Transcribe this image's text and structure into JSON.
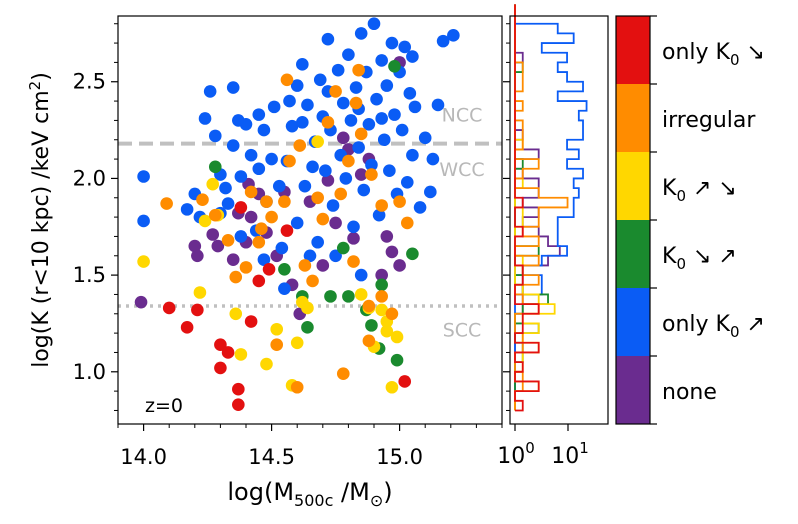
{
  "chart_data": [
    {
      "type": "scatter",
      "xlabel_parts": [
        "log(M",
        "500c",
        " /M",
        "⊙",
        ")"
      ],
      "ylabel_parts": [
        "log(K (r<10 kpc) /keV cm",
        "2",
        ")"
      ],
      "xlim": [
        13.9,
        15.4
      ],
      "ylim": [
        0.73,
        2.84
      ],
      "x_ticks": [
        {
          "v": 14.0,
          "label": "14.0"
        },
        {
          "v": 14.5,
          "label": "14.5"
        },
        {
          "v": 15.0,
          "label": "15.0"
        }
      ],
      "y_ticks": [
        {
          "v": 1.0,
          "label": "1.0"
        },
        {
          "v": 1.5,
          "label": "1.5"
        },
        {
          "v": 2.0,
          "label": "2.0"
        },
        {
          "v": 2.5,
          "label": "2.5"
        }
      ],
      "annotation": "z=0",
      "thresholds": [
        {
          "y": 2.18,
          "style": "dashed",
          "label": "NCC",
          "label_y": 2.33
        },
        {
          "y": 2.18,
          "style": "none",
          "label": "WCC",
          "label_y": 2.05
        },
        {
          "y": 1.34,
          "style": "dotted",
          "label": "SCC",
          "label_y": 1.22
        }
      ],
      "series": [
        {
          "name": "none",
          "color": "#6a2c8f",
          "points": [
            [
              13.99,
              1.36
            ],
            [
              14.2,
              1.65
            ],
            [
              14.21,
              1.6
            ],
            [
              14.27,
              1.71
            ],
            [
              14.29,
              1.65
            ],
            [
              14.35,
              1.58
            ],
            [
              14.37,
              1.82
            ],
            [
              14.4,
              1.67
            ],
            [
              14.42,
              1.8
            ],
            [
              14.41,
              1.97
            ],
            [
              14.45,
              1.92
            ],
            [
              14.48,
              1.72
            ],
            [
              14.52,
              1.6
            ],
            [
              14.58,
              1.45
            ],
            [
              14.61,
              1.3
            ],
            [
              14.7,
              1.55
            ],
            [
              14.72,
              1.99
            ],
            [
              14.75,
              1.77
            ],
            [
              14.8,
              2.15
            ],
            [
              14.82,
              1.69
            ],
            [
              14.85,
              2.02
            ],
            [
              14.88,
              2.1
            ],
            [
              14.78,
              2.21
            ],
            [
              14.93,
              1.5
            ],
            [
              14.97,
              1.62
            ],
            [
              15.0,
              1.55
            ],
            [
              15.0,
              2.6
            ],
            [
              14.95,
              1.7
            ],
            [
              14.65,
              1.88
            ],
            [
              14.55,
              1.93
            ]
          ]
        },
        {
          "name": "only K0 ↗",
          "color": "#0a5cf5",
          "points": [
            [
              14.0,
              2.01
            ],
            [
              14.0,
              1.78
            ],
            [
              14.17,
              1.84
            ],
            [
              14.2,
              1.92
            ],
            [
              14.22,
              1.8
            ],
            [
              14.24,
              2.31
            ],
            [
              14.26,
              2.45
            ],
            [
              14.28,
              2.22
            ],
            [
              14.3,
              2.02
            ],
            [
              14.32,
              1.95
            ],
            [
              14.33,
              1.87
            ],
            [
              14.35,
              2.17
            ],
            [
              14.37,
              2.3
            ],
            [
              14.38,
              2.01
            ],
            [
              14.4,
              2.28
            ],
            [
              14.42,
              2.12
            ],
            [
              14.44,
              1.73
            ],
            [
              14.45,
              2.33
            ],
            [
              14.47,
              2.25
            ],
            [
              14.48,
              1.88
            ],
            [
              14.5,
              2.1
            ],
            [
              14.51,
              2.37
            ],
            [
              14.53,
              1.96
            ],
            [
              14.54,
              1.64
            ],
            [
              14.55,
              1.43
            ],
            [
              14.56,
              2.09
            ],
            [
              14.58,
              2.27
            ],
            [
              14.6,
              2.48
            ],
            [
              14.6,
              1.77
            ],
            [
              14.62,
              2.29
            ],
            [
              14.63,
              1.96
            ],
            [
              14.64,
              2.38
            ],
            [
              14.66,
              2.06
            ],
            [
              14.67,
              2.19
            ],
            [
              14.68,
              1.67
            ],
            [
              14.69,
              2.51
            ],
            [
              14.7,
              2.32
            ],
            [
              14.71,
              2.04
            ],
            [
              14.72,
              2.45
            ],
            [
              14.73,
              2.25
            ],
            [
              14.74,
              1.86
            ],
            [
              14.76,
              2.56
            ],
            [
              14.77,
              2.12
            ],
            [
              14.78,
              2.39
            ],
            [
              14.79,
              2.0
            ],
            [
              14.8,
              2.64
            ],
            [
              14.81,
              2.3
            ],
            [
              14.82,
              1.75
            ],
            [
              14.83,
              2.47
            ],
            [
              14.84,
              2.16
            ],
            [
              14.85,
              2.75
            ],
            [
              14.86,
              1.94
            ],
            [
              14.87,
              2.55
            ],
            [
              14.88,
              2.28
            ],
            [
              14.89,
              2.07
            ],
            [
              14.9,
              2.8
            ],
            [
              14.91,
              2.41
            ],
            [
              14.92,
              1.81
            ],
            [
              14.93,
              2.61
            ],
            [
              14.94,
              2.2
            ],
            [
              14.95,
              2.48
            ],
            [
              14.96,
              2.04
            ],
            [
              14.97,
              2.7
            ],
            [
              14.98,
              2.33
            ],
            [
              14.99,
              1.92
            ],
            [
              15.0,
              2.55
            ],
            [
              15.01,
              2.25
            ],
            [
              15.02,
              2.68
            ],
            [
              15.03,
              1.98
            ],
            [
              15.04,
              2.44
            ],
            [
              15.05,
              2.12
            ],
            [
              15.06,
              2.37
            ],
            [
              15.08,
              1.85
            ],
            [
              15.1,
              2.21
            ],
            [
              15.12,
              1.93
            ],
            [
              15.13,
              2.1
            ],
            [
              15.17,
              2.71
            ],
            [
              15.21,
              2.74
            ],
            [
              15.15,
              2.38
            ],
            [
              14.85,
              1.5
            ],
            [
              14.75,
              1.6
            ],
            [
              14.65,
              1.6
            ],
            [
              14.47,
              1.58
            ],
            [
              14.38,
              1.7
            ],
            [
              14.3,
              1.82
            ],
            [
              14.57,
              2.4
            ],
            [
              14.62,
              2.59
            ],
            [
              14.72,
              2.72
            ],
            [
              14.84,
              2.36
            ],
            [
              15.05,
              2.63
            ],
            [
              14.93,
              2.31
            ],
            [
              14.45,
              2.05
            ],
            [
              14.35,
              2.47
            ]
          ]
        },
        {
          "name": "K0 ↘ ↗",
          "color": "#1a8a2e",
          "points": [
            [
              14.28,
              2.06
            ],
            [
              14.55,
              1.53
            ],
            [
              14.62,
              1.39
            ],
            [
              14.64,
              1.23
            ],
            [
              14.73,
              1.39
            ],
            [
              14.8,
              1.39
            ],
            [
              14.87,
              1.32
            ],
            [
              14.89,
              1.24
            ],
            [
              14.92,
              1.12
            ],
            [
              14.93,
              1.45
            ],
            [
              14.99,
              1.06
            ],
            [
              15.05,
              1.61
            ],
            [
              14.98,
              2.58
            ],
            [
              14.78,
              1.64
            ]
          ]
        },
        {
          "name": "K0 ↗ ↘",
          "color": "#ffd700",
          "points": [
            [
              14.0,
              1.57
            ],
            [
              14.22,
              1.41
            ],
            [
              14.24,
              1.78
            ],
            [
              14.27,
              1.97
            ],
            [
              14.29,
              1.81
            ],
            [
              14.36,
              1.3
            ],
            [
              14.38,
              1.09
            ],
            [
              14.48,
              1.04
            ],
            [
              14.52,
              1.22
            ],
            [
              14.58,
              0.93
            ],
            [
              14.6,
              1.15
            ],
            [
              14.62,
              1.36
            ],
            [
              14.64,
              1.33
            ],
            [
              14.68,
              2.19
            ],
            [
              14.85,
              1.4
            ],
            [
              14.88,
              1.33
            ],
            [
              14.9,
              1.13
            ],
            [
              14.93,
              1.32
            ],
            [
              14.95,
              1.21
            ],
            [
              14.97,
              0.92
            ],
            [
              14.99,
              1.18
            ],
            [
              14.95,
              1.26
            ]
          ]
        },
        {
          "name": "irregular",
          "color": "#ff8c00",
          "points": [
            [
              14.09,
              1.87
            ],
            [
              14.23,
              1.89
            ],
            [
              14.28,
              1.81
            ],
            [
              14.33,
              1.68
            ],
            [
              14.36,
              1.49
            ],
            [
              14.4,
              1.54
            ],
            [
              14.42,
              1.93
            ],
            [
              14.46,
              1.74
            ],
            [
              14.48,
              1.88
            ],
            [
              14.5,
              1.8
            ],
            [
              14.55,
              1.88
            ],
            [
              14.57,
              2.09
            ],
            [
              14.61,
              2.17
            ],
            [
              14.63,
              1.55
            ],
            [
              14.66,
              1.47
            ],
            [
              14.68,
              1.9
            ],
            [
              14.7,
              1.79
            ],
            [
              14.72,
              2.29
            ],
            [
              14.75,
              2.45
            ],
            [
              14.77,
              1.92
            ],
            [
              14.8,
              2.09
            ],
            [
              14.82,
              1.57
            ],
            [
              14.83,
              2.39
            ],
            [
              14.85,
              2.23
            ],
            [
              14.89,
              2.02
            ],
            [
              14.93,
              1.86
            ],
            [
              15.0,
              1.88
            ],
            [
              15.03,
              1.77
            ],
            [
              14.88,
              1.34
            ],
            [
              14.93,
              1.39
            ],
            [
              14.97,
              1.3
            ],
            [
              14.6,
              0.92
            ],
            [
              14.78,
              0.99
            ],
            [
              14.52,
              1.14
            ],
            [
              14.88,
              1.16
            ],
            [
              14.84,
              2.56
            ],
            [
              14.56,
              2.51
            ],
            [
              14.45,
              1.67
            ]
          ]
        },
        {
          "name": "only K0 ↘",
          "color": "#e31010",
          "points": [
            [
              14.1,
              1.33
            ],
            [
              14.17,
              1.23
            ],
            [
              14.21,
              1.32
            ],
            [
              14.3,
              1.14
            ],
            [
              14.33,
              1.1
            ],
            [
              14.3,
              1.02
            ],
            [
              14.37,
              0.91
            ],
            [
              14.37,
              0.83
            ],
            [
              14.42,
              1.26
            ],
            [
              14.45,
              1.47
            ],
            [
              14.49,
              1.53
            ],
            [
              14.56,
              1.73
            ],
            [
              15.02,
              0.95
            ],
            [
              14.38,
              1.85
            ]
          ]
        }
      ],
      "histogram": {
        "xlabel_ticks": [
          {
            "base": "10",
            "exp": "0"
          },
          {
            "base": "10",
            "exp": "1"
          }
        ],
        "hist_colors": [
          "#0a5cf5",
          "#ff8c00",
          "#e31010",
          "#1a8a2e",
          "#ffd700",
          "#6a2c8f"
        ]
      },
      "colorbar": {
        "categories": [
          {
            "label": "none",
            "color": "#6a2c8f"
          },
          {
            "label_parts": [
              "only K",
              "0",
              " ↗"
            ],
            "color": "#0a5cf5"
          },
          {
            "label_parts": [
              "K",
              "0",
              " ↘ ↗"
            ],
            "color": "#1a8a2e"
          },
          {
            "label_parts": [
              "K",
              "0",
              " ↗ ↘"
            ],
            "color": "#ffd700"
          },
          {
            "label": "irregular",
            "color": "#ff8c00"
          },
          {
            "label_parts": [
              "only K",
              "0",
              " ↘"
            ],
            "color": "#e31010"
          }
        ]
      }
    }
  ]
}
